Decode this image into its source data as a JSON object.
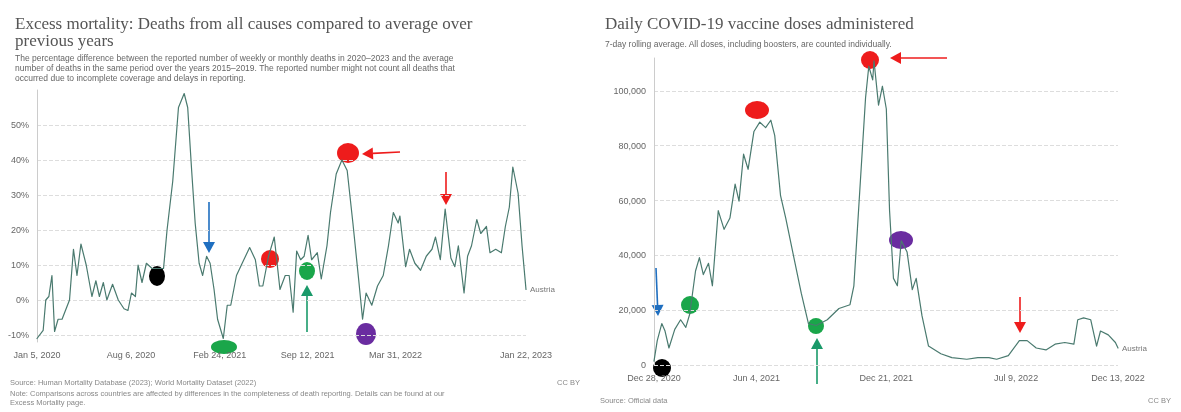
{
  "chart_data": [
    {
      "type": "line",
      "title": "Excess mortality: Deaths from all causes compared to average over previous years",
      "subtitle": "The percentage difference between the reported number of weekly or monthly deaths in 2020–2023 and the average number of deaths in the same period over the years 2015–2019. The reported number might not count all deaths that occurred due to incomplete coverage and delays in reporting.",
      "annotations": [
        "Source: Human Mortality Database (2023); World Mortality Dataset (2022)",
        "CC BY",
        "Note: Comparisons across countries are affected by differences in the completeness of death reporting. Details can be found at our Excess Mortality page."
      ],
      "xlim": [
        "2020-01-05",
        "2023-01-22"
      ],
      "xticks": [
        {
          "value": "2020-01-05",
          "label": "Jan 5, 2020"
        },
        {
          "value": "2020-08-06",
          "label": "Aug 6, 2020"
        },
        {
          "value": "2021-02-24",
          "label": "Feb 24, 2021"
        },
        {
          "value": "2021-09-12",
          "label": "Sep 12, 2021"
        },
        {
          "value": "2022-03-31",
          "label": "Mar 31, 2022"
        },
        {
          "value": "2023-01-22",
          "label": "Jan 22, 2023"
        }
      ],
      "ylim": [
        -12,
        60
      ],
      "yticks": [
        {
          "value": -10,
          "label": "-10%"
        },
        {
          "value": 0,
          "label": "0%"
        },
        {
          "value": 10,
          "label": "10%"
        },
        {
          "value": 20,
          "label": "20%"
        },
        {
          "value": 30,
          "label": "30%"
        },
        {
          "value": 40,
          "label": "40%"
        },
        {
          "value": 50,
          "label": "50%"
        }
      ],
      "grid": "y",
      "marker": "none",
      "series": [
        {
          "name": "Austria",
          "color": "#4a7a6f",
          "x": [
            "2020-01-05",
            "2020-01-19",
            "2020-01-25",
            "2020-02-01",
            "2020-02-08",
            "2020-02-14",
            "2020-02-22",
            "2020-03-02",
            "2020-03-19",
            "2020-03-28",
            "2020-04-05",
            "2020-04-14",
            "2020-04-26",
            "2020-05-09",
            "2020-05-18",
            "2020-05-26",
            "2020-06-04",
            "2020-06-12",
            "2020-06-25",
            "2020-07-08",
            "2020-07-21",
            "2020-07-30",
            "2020-08-07",
            "2020-08-16",
            "2020-08-22",
            "2020-08-31",
            "2020-09-10",
            "2020-09-23",
            "2020-10-19",
            "2020-10-27",
            "2020-11-09",
            "2020-11-22",
            "2020-12-05",
            "2020-12-13",
            "2020-12-22",
            "2020-12-30",
            "2021-01-08",
            "2021-01-16",
            "2021-01-25",
            "2021-02-02",
            "2021-02-11",
            "2021-02-19",
            "2021-03-04",
            "2021-03-13",
            "2021-03-21",
            "2021-04-03",
            "2021-04-16",
            "2021-05-03",
            "2021-05-16",
            "2021-05-25",
            "2021-06-02",
            "2021-06-15",
            "2021-06-28",
            "2021-07-11",
            "2021-07-23",
            "2021-08-01",
            "2021-08-10",
            "2021-08-18",
            "2021-08-27",
            "2021-09-04",
            "2021-09-13",
            "2021-09-21",
            "2021-10-04",
            "2021-10-13",
            "2021-10-26",
            "2021-11-03",
            "2021-11-16",
            "2021-11-29",
            "2021-12-11",
            "2021-12-24",
            "2022-01-06",
            "2022-01-15",
            "2022-01-23",
            "2022-02-05",
            "2022-02-18",
            "2022-03-03",
            "2022-03-15",
            "2022-03-26",
            "2022-04-06",
            "2022-04-10",
            "2022-04-23",
            "2022-05-02",
            "2022-05-14",
            "2022-05-27",
            "2022-06-09",
            "2022-06-22",
            "2022-06-30",
            "2022-07-11",
            "2022-07-22",
            "2022-08-04",
            "2022-08-13",
            "2022-08-21",
            "2022-09-03",
            "2022-09-11",
            "2022-09-20",
            "2022-10-02",
            "2022-10-11",
            "2022-10-24",
            "2022-11-01",
            "2022-11-14",
            "2022-11-27",
            "2022-12-06",
            "2022-12-15",
            "2022-12-23",
            "2023-01-04",
            "2023-01-13",
            "2023-01-22"
          ],
          "values": [
            -11,
            -8.7,
            0,
            1,
            7,
            -9,
            -5.5,
            -5.5,
            0,
            14.5,
            7,
            16,
            10,
            1,
            5.5,
            1,
            5,
            0,
            4.5,
            0,
            -2.5,
            -3,
            2,
            1,
            10,
            5,
            10.5,
            9,
            9,
            20,
            34,
            55,
            59,
            55,
            37,
            22,
            10.5,
            7,
            12.5,
            10.5,
            3,
            -5.5,
            -11,
            -1.5,
            -1.5,
            7,
            10.5,
            15,
            11.5,
            4,
            4,
            12.5,
            18,
            3,
            7,
            7,
            -3.5,
            14,
            11.5,
            12.5,
            18.5,
            11.5,
            13.5,
            6,
            15.5,
            25,
            36,
            40,
            37,
            22,
            6,
            -5.5,
            2,
            -1.5,
            4,
            7,
            15.5,
            25,
            22,
            24,
            9.5,
            14.5,
            10.5,
            8.5,
            12.5,
            14.5,
            18,
            11.5,
            26,
            12,
            9.5,
            15.5,
            2,
            12.5,
            15.5,
            23,
            19,
            21,
            13.5,
            14.5,
            13.5,
            21,
            26.5,
            38,
            30.5,
            15.5,
            3
          ]
        }
      ]
    },
    {
      "type": "line",
      "title": "Daily COVID-19 vaccine doses administered",
      "subtitle": "7-day rolling average. All doses, including boosters, are counted individually.",
      "annotations": [
        "Source: Official data",
        "CC BY"
      ],
      "xlim": [
        "2020-12-28",
        "2022-12-13"
      ],
      "xticks": [
        {
          "value": "2020-12-28",
          "label": "Dec 28, 2020"
        },
        {
          "value": "2021-06-04",
          "label": "Jun 4, 2021"
        },
        {
          "value": "2021-12-21",
          "label": "Dec 21, 2021"
        },
        {
          "value": "2022-07-09",
          "label": "Jul 9, 2022"
        },
        {
          "value": "2022-12-13",
          "label": "Dec 13, 2022"
        }
      ],
      "ylim": [
        0,
        112000
      ],
      "yticks": [
        {
          "value": 0,
          "label": "0"
        },
        {
          "value": 20000,
          "label": "20,000"
        },
        {
          "value": 40000,
          "label": "40,000"
        },
        {
          "value": 60000,
          "label": "60,000"
        },
        {
          "value": 80000,
          "label": "80,000"
        },
        {
          "value": 100000,
          "label": "100,000"
        }
      ],
      "grid": "y",
      "marker": "none",
      "series": [
        {
          "name": "Austria",
          "color": "#4a7a6f",
          "x": [
            "2020-12-28",
            "2021-01-02",
            "2021-01-09",
            "2021-01-14",
            "2021-01-20",
            "2021-01-29",
            "2021-02-07",
            "2021-02-15",
            "2021-02-21",
            "2021-03-02",
            "2021-03-08",
            "2021-03-14",
            "2021-03-22",
            "2021-03-28",
            "2021-04-06",
            "2021-04-15",
            "2021-04-24",
            "2021-05-02",
            "2021-05-08",
            "2021-05-15",
            "2021-05-22",
            "2021-05-31",
            "2021-06-09",
            "2021-06-18",
            "2021-06-26",
            "2021-07-02",
            "2021-07-11",
            "2021-07-19",
            "2021-07-31",
            "2021-08-12",
            "2021-08-23",
            "2021-09-04",
            "2021-09-21",
            "2021-10-09",
            "2021-10-26",
            "2021-11-01",
            "2021-11-10",
            "2021-11-19",
            "2021-11-24",
            "2021-11-30",
            "2021-12-02",
            "2021-12-09",
            "2021-12-15",
            "2021-12-21",
            "2021-12-26",
            "2022-01-01",
            "2022-01-07",
            "2022-01-13",
            "2022-01-22",
            "2022-01-30",
            "2022-02-05",
            "2022-02-14",
            "2022-02-24",
            "2022-03-15",
            "2022-04-01",
            "2022-04-24",
            "2022-05-11",
            "2022-05-28",
            "2022-06-09",
            "2022-06-27",
            "2022-07-14",
            "2022-07-26",
            "2022-08-09",
            "2022-08-24",
            "2022-09-07",
            "2022-09-22",
            "2022-10-06",
            "2022-10-12",
            "2022-10-21",
            "2022-11-01",
            "2022-11-10",
            "2022-11-16",
            "2022-11-28",
            "2022-12-09",
            "2022-12-13"
          ],
          "values": [
            1400,
            8900,
            15100,
            12400,
            6200,
            13000,
            16500,
            13700,
            18500,
            34300,
            39200,
            33000,
            37100,
            28900,
            56300,
            49500,
            53600,
            66000,
            59800,
            76900,
            71400,
            85200,
            88600,
            86600,
            89300,
            83800,
            61800,
            53600,
            39800,
            26100,
            15100,
            14400,
            16500,
            20600,
            22000,
            28900,
            63200,
            97500,
            109000,
            104000,
            111000,
            94800,
            101700,
            93400,
            56300,
            31600,
            28900,
            45300,
            41200,
            27500,
            31600,
            17900,
            6900,
            4100,
            2700,
            2100,
            2700,
            2700,
            2100,
            3400,
            8900,
            8900,
            6200,
            5500,
            7600,
            8200,
            7600,
            16500,
            17200,
            16500,
            6900,
            12400,
            11000,
            8200,
            6200
          ]
        }
      ]
    }
  ]
}
